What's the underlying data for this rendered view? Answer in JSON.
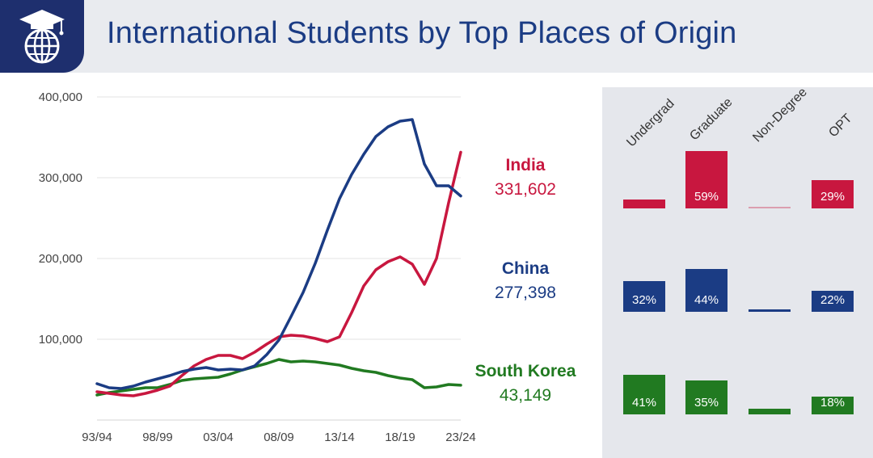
{
  "header": {
    "title": "International Students by Top Places of Origin",
    "logo_icon": "graduation-cap-globe-icon"
  },
  "chart_data": {
    "type": "line",
    "x": [
      "93/94",
      "94/95",
      "95/96",
      "96/97",
      "97/98",
      "98/99",
      "99/00",
      "00/01",
      "01/02",
      "02/03",
      "03/04",
      "04/05",
      "05/06",
      "06/07",
      "07/08",
      "08/09",
      "09/10",
      "10/11",
      "11/12",
      "12/13",
      "13/14",
      "14/15",
      "15/16",
      "16/17",
      "17/18",
      "18/19",
      "19/20",
      "20/21",
      "21/22",
      "22/23",
      "23/24"
    ],
    "x_tick_labels": [
      "93/94",
      "98/99",
      "03/04",
      "08/09",
      "13/14",
      "18/19",
      "23/24"
    ],
    "y_tick_labels": [
      "100,000",
      "200,000",
      "300,000",
      "400,000"
    ],
    "ylim": [
      0,
      400000
    ],
    "series": [
      {
        "name": "India",
        "color": "#c8173f",
        "values": [
          35000,
          33000,
          31000,
          30000,
          33000,
          37000,
          42000,
          55000,
          67000,
          75000,
          80000,
          80000,
          76000,
          84000,
          94000,
          103000,
          105000,
          104000,
          101000,
          97000,
          103000,
          133000,
          166000,
          186000,
          196000,
          202000,
          193000,
          168000,
          200000,
          269000,
          331602
        ]
      },
      {
        "name": "China",
        "color": "#1b3c84",
        "values": [
          45000,
          40000,
          39000,
          42000,
          47000,
          51000,
          55000,
          60000,
          63000,
          65000,
          62000,
          63000,
          62000,
          67000,
          81000,
          99000,
          128000,
          158000,
          194000,
          235000,
          274000,
          304000,
          329000,
          351000,
          363000,
          370000,
          372000,
          317000,
          290000,
          290000,
          277398
        ]
      },
      {
        "name": "South Korea",
        "color": "#217a21",
        "values": [
          31000,
          34000,
          36000,
          38000,
          40000,
          40000,
          44000,
          49000,
          51000,
          52000,
          53000,
          57000,
          62000,
          66000,
          70000,
          75000,
          72000,
          73000,
          72000,
          70000,
          68000,
          64000,
          61000,
          59000,
          55000,
          52000,
          50000,
          40000,
          41000,
          44000,
          43149
        ]
      }
    ],
    "callouts": [
      {
        "name": "India",
        "value": "331,602",
        "color": "#c8173f"
      },
      {
        "name": "China",
        "value": "277,398",
        "color": "#1b3c84"
      },
      {
        "name": "South Korea",
        "value": "43,149",
        "color": "#217a21"
      }
    ]
  },
  "breakdown": {
    "columns": [
      "Undergrad",
      "Graduate",
      "Non-Degree",
      "OPT"
    ],
    "rows": [
      {
        "country": "India",
        "color": "#c8173f",
        "shares": [
          9,
          59,
          0.5,
          29
        ],
        "labels": [
          "",
          "59%",
          "",
          "29%"
        ]
      },
      {
        "country": "China",
        "color": "#1b3c84",
        "shares": [
          32,
          44,
          2.5,
          22
        ],
        "labels": [
          "32%",
          "44%",
          "",
          "22%"
        ]
      },
      {
        "country": "South Korea",
        "color": "#217a21",
        "shares": [
          41,
          35,
          6,
          18
        ],
        "labels": [
          "41%",
          "35%",
          "",
          "18%"
        ]
      }
    ]
  }
}
